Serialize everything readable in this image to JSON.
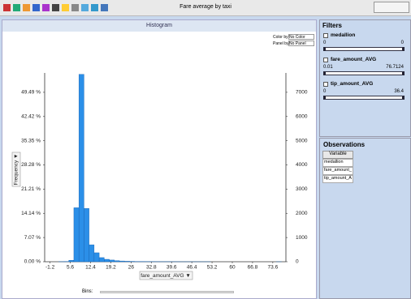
{
  "window": {
    "title": "Fare average by taxi"
  },
  "pane": {
    "title": "Histogram",
    "color_by_label": "Color by:",
    "color_by_value": "No Color",
    "panel_by_label": "Panel by:",
    "panel_by_value": "No Panel",
    "bins_label": "Bins:"
  },
  "filters": {
    "title": "Filters",
    "items": [
      {
        "name": "medallion",
        "min": "0",
        "max": "0"
      },
      {
        "name": "fare_amount_AVG",
        "min": "0.01",
        "max": "76.7124"
      },
      {
        "name": "tip_amount_AVG",
        "min": "0",
        "max": "36.4"
      }
    ]
  },
  "observations": {
    "title": "Observations",
    "header": "Variable",
    "rows": [
      "medallion",
      "fare_amount_",
      "tip_amount_A"
    ]
  },
  "chart_data": {
    "type": "histogram",
    "x_label": "fare_amount_AVG ▼",
    "y_label": "Frequency ▼",
    "bins": [
      0,
      1.7,
      3.4,
      5.1,
      6.8,
      8.5,
      10.2,
      11.9,
      13.6,
      15.3,
      17,
      18.7,
      20.4,
      22.1,
      23.8,
      25.5,
      27.2,
      28.9,
      30.6,
      32.3,
      34,
      35.7,
      37.4,
      39.1,
      40.8,
      42.5,
      44.2,
      45.9,
      47.6,
      49.3,
      51,
      52.7,
      54.4,
      56.1,
      57.8,
      59.5,
      61.2,
      62.9,
      64.6,
      66.3,
      68,
      69.7,
      71.4,
      73.1,
      74.8,
      76.5
    ],
    "series": [
      {
        "color": "#2b8fe8",
        "axis": "y2",
        "values": [
          0,
          3,
          10,
          60,
          2230,
          7740,
          2200,
          700,
          370,
          170,
          100,
          70,
          45,
          30,
          20,
          15,
          10,
          8,
          6,
          5,
          4,
          3,
          3,
          2,
          2,
          1,
          1,
          1,
          1,
          1,
          1,
          0,
          0,
          0,
          0,
          0,
          0,
          0,
          0,
          0,
          0,
          0,
          0,
          0,
          1
        ]
      }
    ],
    "xlim": [
      -3,
      78
    ],
    "xticks": [
      -1.2,
      5.6,
      12.4,
      19.2,
      26,
      32.8,
      39.6,
      46.4,
      53.2,
      60,
      66.8,
      73.6
    ],
    "ylim": [
      0,
      55.15
    ],
    "yticks": [
      {
        "value": 0,
        "label": "0.00 %"
      },
      {
        "value": 7.07,
        "label": "7.07 %"
      },
      {
        "value": 14.14,
        "label": "14.14 %"
      },
      {
        "value": 21.21,
        "label": "21.21 %"
      },
      {
        "value": 28.28,
        "label": "28.28 %"
      },
      {
        "value": 35.35,
        "label": "35.35 %"
      },
      {
        "value": 42.42,
        "label": "42.42 %"
      },
      {
        "value": 49.49,
        "label": "49.49 %"
      }
    ],
    "y2lim": [
      0,
      7800
    ],
    "y2ticks": [
      0,
      1000,
      2000,
      3000,
      4000,
      5000,
      6000,
      7000
    ]
  }
}
